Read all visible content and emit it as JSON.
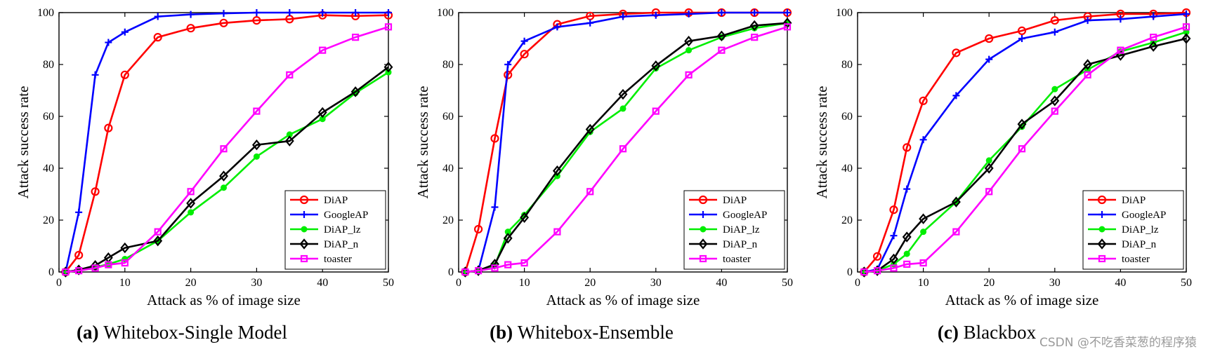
{
  "watermark": "CSDN @不吃香菜葱的程序猿",
  "colors": {
    "DiAP": "#ff0000",
    "GoogleAP": "#0000ff",
    "DiAP_lz": "#00ee00",
    "DiAP_n": "#000000",
    "toaster": "#ff00ff"
  },
  "chart_data": [
    {
      "type": "line",
      "caption_tag": "(a)",
      "caption_text": "Whitebox-Single Model",
      "xlabel": "Attack as % of image size",
      "ylabel": "Attack success rate",
      "xlim": [
        0,
        50
      ],
      "ylim": [
        0,
        100
      ],
      "xticks": [
        "0",
        "10",
        "20",
        "30",
        "40",
        "50"
      ],
      "yticks": [
        "0",
        "20",
        "40",
        "60",
        "80",
        "100"
      ],
      "grid": false,
      "legend_position": "bottom-right",
      "series": [
        {
          "name": "DiAP",
          "marker": "circle",
          "x": [
            1,
            3,
            5.5,
            7.5,
            10,
            15,
            20,
            25,
            30,
            35,
            40,
            45,
            50
          ],
          "y": [
            0,
            6.5,
            31,
            55.5,
            76,
            90.5,
            94,
            96,
            97,
            97.5,
            99,
            98.7,
            99
          ]
        },
        {
          "name": "GoogleAP",
          "marker": "plus",
          "x": [
            1,
            3,
            5.5,
            7.5,
            10,
            15,
            20,
            25,
            30,
            35,
            40,
            45,
            50
          ],
          "y": [
            0,
            23,
            76,
            88.5,
            92.5,
            98.5,
            99.3,
            99.7,
            100,
            100,
            100,
            100,
            100
          ]
        },
        {
          "name": "DiAP_lz",
          "marker": "dot",
          "x": [
            1,
            3,
            5.5,
            7.5,
            10,
            15,
            20,
            25,
            30,
            35,
            40,
            45,
            50
          ],
          "y": [
            0,
            0.8,
            1.8,
            3,
            5,
            12,
            23,
            32.5,
            44.5,
            53,
            59,
            69,
            77
          ]
        },
        {
          "name": "DiAP_n",
          "marker": "diamond",
          "x": [
            1,
            3,
            5.5,
            7.5,
            10,
            15,
            20,
            25,
            30,
            35,
            40,
            45,
            50
          ],
          "y": [
            0,
            0.8,
            2.5,
            5.5,
            9.3,
            12,
            26.5,
            37,
            49,
            50.5,
            61.5,
            69.5,
            79
          ]
        },
        {
          "name": "toaster",
          "marker": "square",
          "x": [
            1,
            3,
            5.5,
            7.5,
            10,
            15,
            20,
            25,
            30,
            35,
            40,
            45,
            50
          ],
          "y": [
            0,
            0.5,
            1.5,
            2.8,
            3.5,
            15.5,
            31,
            47.5,
            62,
            76,
            85.5,
            90.5,
            94.5
          ]
        }
      ]
    },
    {
      "type": "line",
      "caption_tag": "(b)",
      "caption_text": "Whitebox-Ensemble",
      "xlabel": "Attack as % of image size",
      "ylabel": "Attack success rate",
      "xlim": [
        0,
        50
      ],
      "ylim": [
        0,
        100
      ],
      "xticks": [
        "0",
        "10",
        "20",
        "30",
        "40",
        "50"
      ],
      "yticks": [
        "0",
        "20",
        "40",
        "60",
        "80",
        "100"
      ],
      "grid": false,
      "legend_position": "bottom-right",
      "series": [
        {
          "name": "DiAP",
          "marker": "circle",
          "x": [
            1,
            3,
            5.5,
            7.5,
            10,
            15,
            20,
            25,
            30,
            35,
            40,
            45,
            50
          ],
          "y": [
            0,
            16.5,
            51.5,
            76,
            84,
            95.5,
            98.7,
            99.5,
            100,
            100,
            100,
            100,
            100
          ]
        },
        {
          "name": "GoogleAP",
          "marker": "plus",
          "x": [
            1,
            3,
            5.5,
            7.5,
            10,
            15,
            20,
            25,
            30,
            35,
            40,
            45,
            50
          ],
          "y": [
            0,
            0.5,
            25,
            80,
            89,
            94.5,
            96,
            98.5,
            99,
            99.5,
            100,
            100,
            100
          ]
        },
        {
          "name": "DiAP_lz",
          "marker": "dot",
          "x": [
            1,
            3,
            5.5,
            7.5,
            10,
            15,
            20,
            25,
            30,
            35,
            40,
            45,
            50
          ],
          "y": [
            0,
            0.5,
            2.5,
            15.5,
            22,
            37,
            54,
            63,
            78.5,
            85.5,
            90.5,
            94,
            96
          ]
        },
        {
          "name": "DiAP_n",
          "marker": "diamond",
          "x": [
            1,
            3,
            5.5,
            7.5,
            10,
            15,
            20,
            25,
            30,
            35,
            40,
            45,
            50
          ],
          "y": [
            0,
            0.5,
            3,
            13,
            21,
            39,
            55,
            68.5,
            79.5,
            89,
            91,
            95,
            96
          ]
        },
        {
          "name": "toaster",
          "marker": "square",
          "x": [
            1,
            3,
            5.5,
            7.5,
            10,
            15,
            20,
            25,
            30,
            35,
            40,
            45,
            50
          ],
          "y": [
            0,
            0.5,
            1.5,
            2.8,
            3.5,
            15.5,
            31,
            47.5,
            62,
            76,
            85.5,
            90.5,
            94.5
          ]
        }
      ]
    },
    {
      "type": "line",
      "caption_tag": "(c)",
      "caption_text": "Blackbox",
      "xlabel": "Attack as % of image size",
      "ylabel": "Attack success rate",
      "xlim": [
        0,
        50
      ],
      "ylim": [
        0,
        100
      ],
      "xticks": [
        "0",
        "10",
        "20",
        "30",
        "40",
        "50"
      ],
      "yticks": [
        "0",
        "20",
        "40",
        "60",
        "80",
        "100"
      ],
      "grid": false,
      "legend_position": "bottom-right",
      "series": [
        {
          "name": "DiAP",
          "marker": "circle",
          "x": [
            1,
            3,
            5.5,
            7.5,
            10,
            15,
            20,
            25,
            30,
            35,
            40,
            45,
            50
          ],
          "y": [
            0,
            6,
            24,
            48,
            66,
            84.5,
            90,
            93,
            97,
            98.5,
            99.5,
            99.5,
            100
          ]
        },
        {
          "name": "GoogleAP",
          "marker": "plus",
          "x": [
            1,
            3,
            5.5,
            7.5,
            10,
            15,
            20,
            25,
            30,
            35,
            40,
            45,
            50
          ],
          "y": [
            0,
            1,
            14,
            32,
            51,
            68,
            82,
            90,
            92.5,
            97,
            97.5,
            98.5,
            99.5
          ]
        },
        {
          "name": "DiAP_lz",
          "marker": "dot",
          "x": [
            1,
            3,
            5.5,
            7.5,
            10,
            15,
            20,
            25,
            30,
            35,
            40,
            45,
            50
          ],
          "y": [
            0,
            0.5,
            3,
            7,
            15.5,
            27,
            43,
            56,
            70.5,
            78,
            85,
            88.5,
            92.5
          ]
        },
        {
          "name": "DiAP_n",
          "marker": "diamond",
          "x": [
            1,
            3,
            5.5,
            7.5,
            10,
            15,
            20,
            25,
            30,
            35,
            40,
            45,
            50
          ],
          "y": [
            0,
            0.5,
            5,
            13.5,
            20.5,
            27,
            40,
            57,
            66,
            80,
            83.5,
            87,
            90
          ]
        },
        {
          "name": "toaster",
          "marker": "square",
          "x": [
            1,
            3,
            5.5,
            7.5,
            10,
            15,
            20,
            25,
            30,
            35,
            40,
            45,
            50
          ],
          "y": [
            0,
            0.5,
            1.5,
            3,
            3.5,
            15.5,
            31,
            47.5,
            62,
            76,
            85.5,
            90.5,
            94.5
          ]
        }
      ]
    }
  ]
}
